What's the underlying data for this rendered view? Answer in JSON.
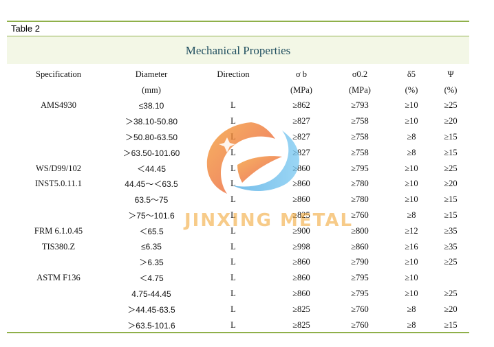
{
  "caption": "Table 2",
  "title": "Mechanical Properties",
  "watermark_text": "JINXING METAL",
  "headers": {
    "row1": [
      "Specification",
      "Diameter",
      "Direction",
      "σ b",
      "σ0.2",
      "δ5",
      "Ψ"
    ],
    "row2": [
      "",
      "(mm)",
      "",
      "(MPa)",
      "(MPa)",
      "(%)",
      "(%)"
    ]
  },
  "rows": [
    [
      "AMS4930",
      "≤38.10",
      "L",
      "≥862",
      "≥793",
      "≥10",
      "≥25"
    ],
    [
      "",
      "＞38.10-50.80",
      "L",
      "≥827",
      "≥758",
      "≥10",
      "≥20"
    ],
    [
      "",
      "＞50.80-63.50",
      "L",
      "≥827",
      "≥758",
      "≥8",
      "≥15"
    ],
    [
      "",
      "＞63.50-101.60",
      "L",
      "≥827",
      "≥758",
      "≥8",
      "≥15"
    ],
    [
      "WS/D99/102",
      "＜44.45",
      "L",
      "≥860",
      "≥795",
      "≥10",
      "≥25"
    ],
    [
      "INST5.0.11.1",
      "44.45～＜63.5",
      "L",
      "≥860",
      "≥780",
      "≥10",
      "≥20"
    ],
    [
      "",
      "63.5～75",
      "L",
      "≥860",
      "≥780",
      "≥10",
      "≥15"
    ],
    [
      "",
      "＞75～101.6",
      "L",
      "≥825",
      "≥760",
      "≥8",
      "≥15"
    ],
    [
      "FRM 6.1.0.45",
      "＜65.5",
      "L",
      "≥900",
      "≥800",
      "≥12",
      "≥35"
    ],
    [
      "TIS380.Z",
      "≤6.35",
      "L",
      "≥998",
      "≥860",
      "≥16",
      "≥35"
    ],
    [
      "",
      "＞6.35",
      "L",
      "≥860",
      "≥790",
      "≥10",
      "≥25"
    ],
    [
      "ASTM F136",
      "＜4.75",
      "L",
      "≥860",
      "≥795",
      "≥10",
      ""
    ],
    [
      "",
      "4.75-44.45",
      "L",
      "≥860",
      "≥795",
      "≥10",
      "≥25"
    ],
    [
      "",
      "＞44.45-63.5",
      "L",
      "≥825",
      "≥760",
      "≥8",
      "≥20"
    ],
    [
      "",
      "＞63.5-101.6",
      "L",
      "≥825",
      "≥760",
      "≥8",
      "≥15"
    ]
  ]
}
